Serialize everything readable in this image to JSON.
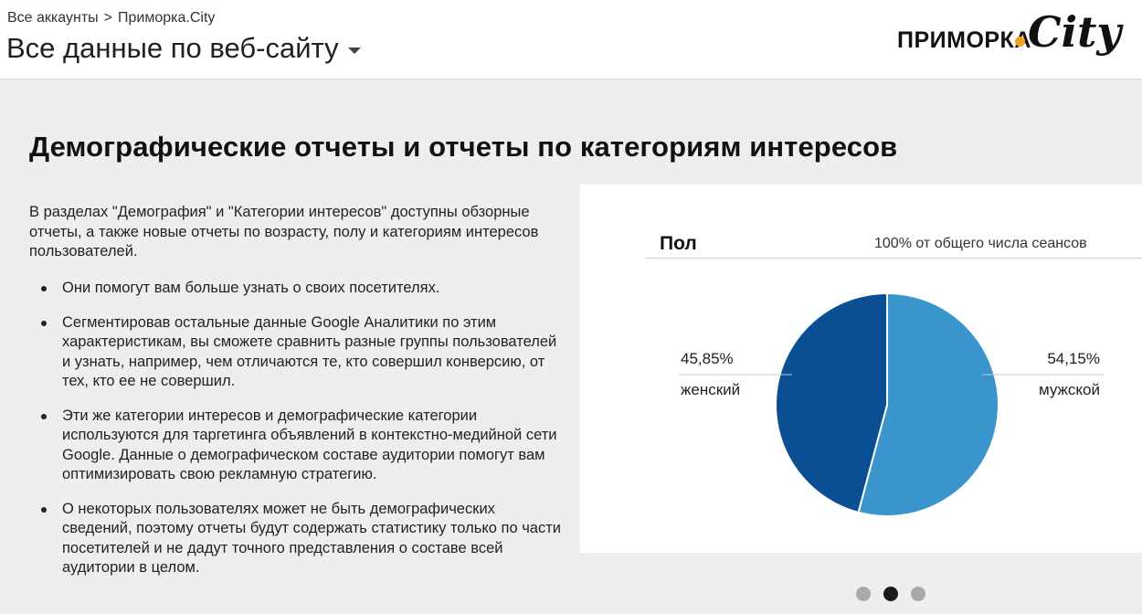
{
  "breadcrumb": {
    "root": "Все аккаунты",
    "separator": ">",
    "current": "Приморка.City"
  },
  "view": {
    "title": "Все данные по веб-сайту",
    "dropdown_icon": "caret-down-icon"
  },
  "logo": {
    "text": "ПРИМОРКА",
    "script": "City",
    "dot_color": "#f4a21c"
  },
  "section": {
    "title": "Демографические отчеты и отчеты по категориям интересов",
    "intro": "В разделах \"Демография\" и \"Категории интересов\" доступны обзорные отчеты, а также новые отчеты по возрасту, полу и категориям интересов пользователей.",
    "bullets": [
      "Они помогут вам больше узнать о своих посетителях.",
      "Сегментировав остальные данные Google Аналитики по этим характеристикам, вы сможете сравнить разные группы пользователей и узнать, например, чем отличаются те, кто совершил конверсию, от тех, кто ее не совершил.",
      "Эти же категории интересов и демографические категории используются для таргетинга объявлений в контекстно-медийной сети Google. Данные о демографическом составе аудитории помогут вам оптимизировать свою рекламную стратегию.",
      "О некоторых пользователях может не быть демографических сведений, поэтому отчеты будут содержать статистику только по части посетителей и не дадут точного представления о составе всей аудитории в целом."
    ]
  },
  "chart_card": {
    "title": "Пол",
    "subtitle": "100% от общего числа сеансов",
    "left_label": {
      "percent": "45,85%",
      "name": "женский"
    },
    "right_label": {
      "percent": "54,15%",
      "name": "мужской"
    }
  },
  "chart_data": {
    "type": "pie",
    "categories": [
      "мужской",
      "женский"
    ],
    "values": [
      54.15,
      45.85
    ],
    "colors": [
      "#3a95cc",
      "#0a4f93"
    ],
    "title": "Пол"
  },
  "carousel": {
    "count": 3,
    "active_index": 1
  }
}
